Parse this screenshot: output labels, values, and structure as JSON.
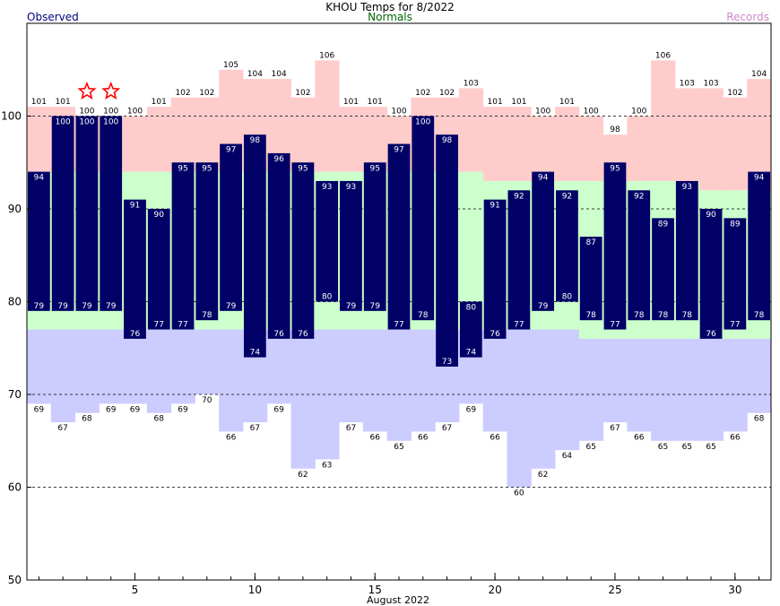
{
  "chart_data": {
    "type": "bar",
    "title": "KHOU Temps for 8/2022",
    "legend": {
      "observed": "Observed",
      "normals": "Normals",
      "records": "Records"
    },
    "colors": {
      "observed": "#000066",
      "observed_legend": "#000080",
      "normals_fill": "#ccffcc",
      "normals_legend": "#006600",
      "record_high_fill": "#ffcccc",
      "record_low_fill": "#ccccff",
      "records_legend": "#cc88cc",
      "star": "#ff0000"
    },
    "xlabel": "August 2022",
    "x_ticks": [
      5,
      10,
      15,
      20,
      25,
      30
    ],
    "ylim": [
      50,
      110
    ],
    "y_ticks": [
      50,
      60,
      70,
      80,
      90,
      100
    ],
    "gridlines": [
      60,
      70,
      80,
      90,
      100
    ],
    "days": [
      1,
      2,
      3,
      4,
      5,
      6,
      7,
      8,
      9,
      10,
      11,
      12,
      13,
      14,
      15,
      16,
      17,
      18,
      19,
      20,
      21,
      22,
      23,
      24,
      25,
      26,
      27,
      28,
      29,
      30,
      31
    ],
    "observed_high": [
      94,
      100,
      100,
      100,
      91,
      90,
      95,
      95,
      97,
      98,
      96,
      95,
      93,
      93,
      95,
      97,
      100,
      98,
      80,
      91,
      92,
      94,
      92,
      87,
      95,
      92,
      89,
      93,
      90,
      89,
      94
    ],
    "observed_low": [
      79,
      79,
      79,
      79,
      76,
      77,
      77,
      78,
      79,
      74,
      76,
      76,
      80,
      79,
      79,
      77,
      78,
      73,
      74,
      76,
      77,
      79,
      80,
      78,
      77,
      78,
      78,
      78,
      76,
      77,
      78
    ],
    "normal_high": [
      94,
      94,
      94,
      94,
      94,
      94,
      94,
      94,
      94,
      94,
      94,
      94,
      94,
      94,
      94,
      94,
      94,
      94,
      94,
      93,
      93,
      93,
      93,
      93,
      93,
      93,
      93,
      93,
      92,
      92,
      92
    ],
    "normal_low": [
      77,
      77,
      77,
      77,
      77,
      77,
      77,
      77,
      77,
      77,
      77,
      77,
      77,
      77,
      77,
      77,
      77,
      77,
      77,
      77,
      77,
      77,
      77,
      76,
      76,
      76,
      76,
      76,
      76,
      76,
      76
    ],
    "record_high": [
      101,
      101,
      100,
      100,
      100,
      101,
      102,
      102,
      105,
      104,
      104,
      102,
      106,
      101,
      101,
      100,
      102,
      102,
      103,
      101,
      101,
      100,
      101,
      100,
      98,
      100,
      106,
      103,
      103,
      102,
      104
    ],
    "record_low": [
      69,
      67,
      68,
      69,
      69,
      68,
      69,
      70,
      66,
      67,
      69,
      62,
      63,
      67,
      66,
      65,
      66,
      67,
      69,
      66,
      60,
      62,
      64,
      65,
      67,
      66,
      65,
      65,
      65,
      66,
      68
    ],
    "record_set_days": [
      3,
      4
    ]
  }
}
